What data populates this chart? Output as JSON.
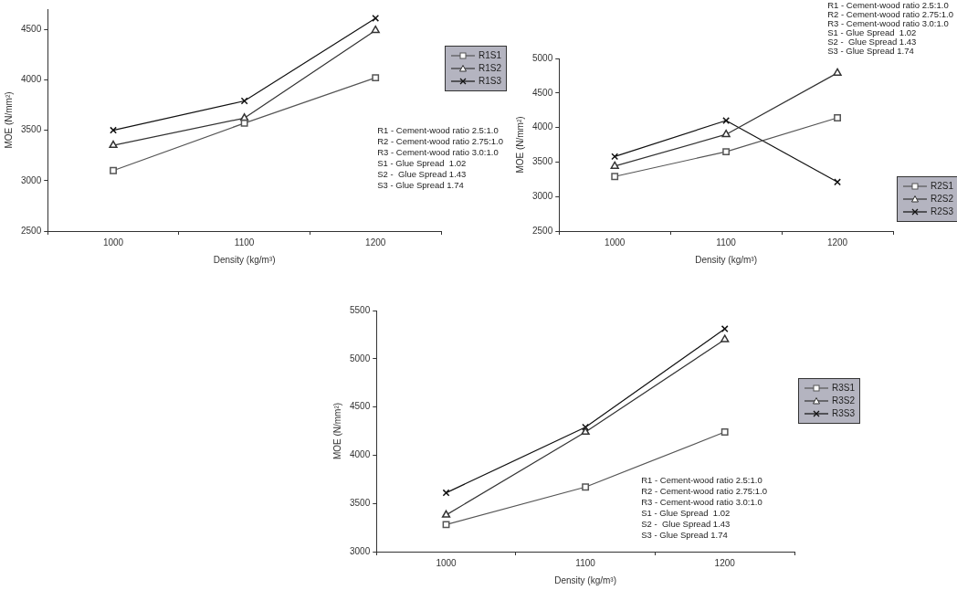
{
  "chart_data": [
    {
      "type": "line",
      "xlabel": "Density (kg/m³)",
      "ylabel": "MOE (N/mm²)",
      "categories": [
        "1000",
        "1100",
        "1200"
      ],
      "ylim": [
        2500,
        4700
      ],
      "yticks": [
        2500,
        3000,
        3500,
        4000,
        4500
      ],
      "grid": false,
      "legend": "top right",
      "line_style": "solid",
      "series": [
        {
          "name": "R1S1",
          "color": "#555555",
          "marker": "square",
          "values": [
            3100,
            3570,
            4020
          ]
        },
        {
          "name": "R1S2",
          "color": "#333333",
          "marker": "triangle",
          "values": [
            3350,
            3620,
            4490
          ]
        },
        {
          "name": "R1S3",
          "color": "#111111",
          "marker": "cross",
          "values": [
            3500,
            3790,
            4610
          ]
        }
      ],
      "annotations": [
        "R1 - Cement-wood ratio 2.5:1.0",
        "R2 - Cement-wood ratio 2.75:1.0",
        "R3 - Cement-wood ratio 3.0:1.0",
        "S1 - Glue Spread  1.02",
        "S2 -  Glue Spread 1.43",
        "S3 - Glue Spread 1.74"
      ]
    },
    {
      "type": "line",
      "xlabel": "Density (kg/m³)",
      "ylabel": "MOE (N/mm²)",
      "categories": [
        "1000",
        "1100",
        "1200"
      ],
      "ylim": [
        2500,
        5000
      ],
      "yticks": [
        2500,
        3000,
        3500,
        4000,
        4500,
        5000
      ],
      "grid": false,
      "legend": "bottom right",
      "line_style": "solid",
      "series": [
        {
          "name": "R2S1",
          "color": "#555555",
          "marker": "square",
          "values": [
            3290,
            3650,
            4140
          ]
        },
        {
          "name": "R2S2",
          "color": "#333333",
          "marker": "triangle",
          "values": [
            3440,
            3900,
            4790
          ]
        },
        {
          "name": "R2S3",
          "color": "#111111",
          "marker": "cross",
          "values": [
            3580,
            4100,
            3210
          ]
        }
      ],
      "annotations": [
        "R1 - Cement-wood ratio 2.5:1.0",
        "R2 - Cement-wood ratio 2.75:1.0",
        "R3 - Cement-wood ratio 3.0:1.0",
        "S1 - Glue Spread  1.02",
        "S2 -  Glue Spread 1.43",
        "S3 - Glue Spread 1.74"
      ]
    },
    {
      "type": "line",
      "xlabel": "Density (kg/m³)",
      "ylabel": "MOE (N/mm²)",
      "categories": [
        "1000",
        "1100",
        "1200"
      ],
      "ylim": [
        3000,
        5500
      ],
      "yticks": [
        3000,
        3500,
        4000,
        4500,
        5000,
        5500
      ],
      "grid": false,
      "legend": "right",
      "line_style": "solid",
      "series": [
        {
          "name": "R3S1",
          "color": "#555555",
          "marker": "square",
          "values": [
            3280,
            3670,
            4240
          ]
        },
        {
          "name": "R3S2",
          "color": "#333333",
          "marker": "triangle",
          "values": [
            3380,
            4240,
            5200
          ]
        },
        {
          "name": "R3S3",
          "color": "#111111",
          "marker": "cross",
          "values": [
            3610,
            4290,
            5310
          ]
        }
      ],
      "annotations": [
        "R1 - Cement-wood ratio 2.5:1.0",
        "R2 - Cement-wood ratio 2.75:1.0",
        "R3 - Cement-wood ratio 3.0:1.0",
        "S1 - Glue Spread  1.02",
        "S2 -  Glue Spread 1.43",
        "S3 - Glue Spread 1.74"
      ]
    }
  ]
}
